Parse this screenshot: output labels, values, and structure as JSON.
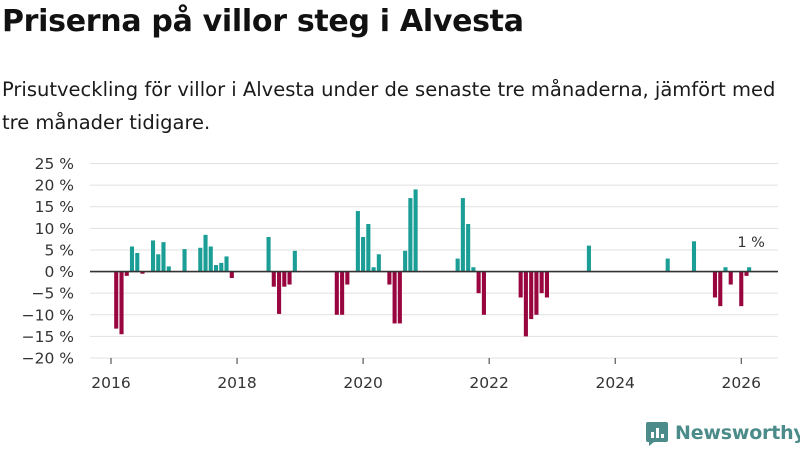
{
  "title": "Priserna på villor steg i Alvesta",
  "subtitle": "Prisutveckling för villor i Alvesta under de senaste tre månaderna, jämfört med tre månader tidigare.",
  "brand": "Newsworthy",
  "colors": {
    "positive": "#1a9e96",
    "negative": "#99063f",
    "grid": "#e1e1e1",
    "zero": "#333333",
    "brand": "#4b8c8a"
  },
  "chart_data": {
    "type": "bar",
    "title": "Priserna på villor steg i Alvesta",
    "xlabel": "",
    "ylabel": "",
    "unit": "%",
    "ylim": [
      -20,
      25
    ],
    "yticks": [
      25,
      20,
      15,
      10,
      5,
      0,
      -5,
      -10,
      -15,
      -20
    ],
    "ytick_labels": [
      "25 %",
      "20 %",
      "15 %",
      "10 %",
      "5 %",
      "0 %",
      "−5 %",
      "−10 %",
      "−15 %",
      "−20 %"
    ],
    "xlim": [
      2015.667,
      2026.583
    ],
    "xticks": [
      2016,
      2018,
      2020,
      2022,
      2024,
      2026
    ],
    "xtick_labels": [
      "2016",
      "2018",
      "2020",
      "2022",
      "2024",
      "2026"
    ],
    "annotation": {
      "label": "1 %",
      "x": 2026.125,
      "value": 1
    },
    "points": [
      {
        "x": 2016.083,
        "value": -13.2
      },
      {
        "x": 2016.167,
        "value": -14.5
      },
      {
        "x": 2016.25,
        "value": -1.0
      },
      {
        "x": 2016.333,
        "value": 5.8
      },
      {
        "x": 2016.417,
        "value": 4.3
      },
      {
        "x": 2016.5,
        "value": -0.5
      },
      {
        "x": 2016.667,
        "value": 7.2
      },
      {
        "x": 2016.75,
        "value": 4.0
      },
      {
        "x": 2016.833,
        "value": 6.8
      },
      {
        "x": 2016.917,
        "value": 1.2
      },
      {
        "x": 2017.167,
        "value": 5.2
      },
      {
        "x": 2017.417,
        "value": 5.5
      },
      {
        "x": 2017.5,
        "value": 8.5
      },
      {
        "x": 2017.583,
        "value": 5.8
      },
      {
        "x": 2017.667,
        "value": 1.5
      },
      {
        "x": 2017.75,
        "value": 2.0
      },
      {
        "x": 2017.833,
        "value": 3.5
      },
      {
        "x": 2017.917,
        "value": -1.5
      },
      {
        "x": 2018.5,
        "value": 8.0
      },
      {
        "x": 2018.583,
        "value": -3.5
      },
      {
        "x": 2018.667,
        "value": -9.8
      },
      {
        "x": 2018.75,
        "value": -3.5
      },
      {
        "x": 2018.833,
        "value": -3.0
      },
      {
        "x": 2018.917,
        "value": 4.8
      },
      {
        "x": 2019.583,
        "value": -10.0
      },
      {
        "x": 2019.667,
        "value": -10.0
      },
      {
        "x": 2019.75,
        "value": -3.0
      },
      {
        "x": 2019.917,
        "value": 14.0
      },
      {
        "x": 2020.0,
        "value": 8.0
      },
      {
        "x": 2020.083,
        "value": 11.0
      },
      {
        "x": 2020.167,
        "value": 1.0
      },
      {
        "x": 2020.25,
        "value": 4.0
      },
      {
        "x": 2020.417,
        "value": -3.0
      },
      {
        "x": 2020.5,
        "value": -12.0
      },
      {
        "x": 2020.583,
        "value": -12.0
      },
      {
        "x": 2020.667,
        "value": 4.8
      },
      {
        "x": 2020.75,
        "value": 17.0
      },
      {
        "x": 2020.833,
        "value": 19.0
      },
      {
        "x": 2021.5,
        "value": 3.0
      },
      {
        "x": 2021.583,
        "value": 17.0
      },
      {
        "x": 2021.667,
        "value": 11.0
      },
      {
        "x": 2021.75,
        "value": 1.0
      },
      {
        "x": 2021.833,
        "value": -5.0
      },
      {
        "x": 2021.917,
        "value": -10.0
      },
      {
        "x": 2022.5,
        "value": -6.0
      },
      {
        "x": 2022.583,
        "value": -15.0
      },
      {
        "x": 2022.667,
        "value": -11.0
      },
      {
        "x": 2022.75,
        "value": -10.0
      },
      {
        "x": 2022.833,
        "value": -5.0
      },
      {
        "x": 2022.917,
        "value": -6.0
      },
      {
        "x": 2023.583,
        "value": 6.0
      },
      {
        "x": 2024.833,
        "value": 3.0
      },
      {
        "x": 2025.25,
        "value": 7.0
      },
      {
        "x": 2025.583,
        "value": -6.0
      },
      {
        "x": 2025.667,
        "value": -8.0
      },
      {
        "x": 2025.75,
        "value": 1.0
      },
      {
        "x": 2025.833,
        "value": -3.0
      },
      {
        "x": 2026.0,
        "value": -8.0
      },
      {
        "x": 2026.083,
        "value": -1.0
      },
      {
        "x": 2026.125,
        "value": 1.0
      }
    ]
  }
}
